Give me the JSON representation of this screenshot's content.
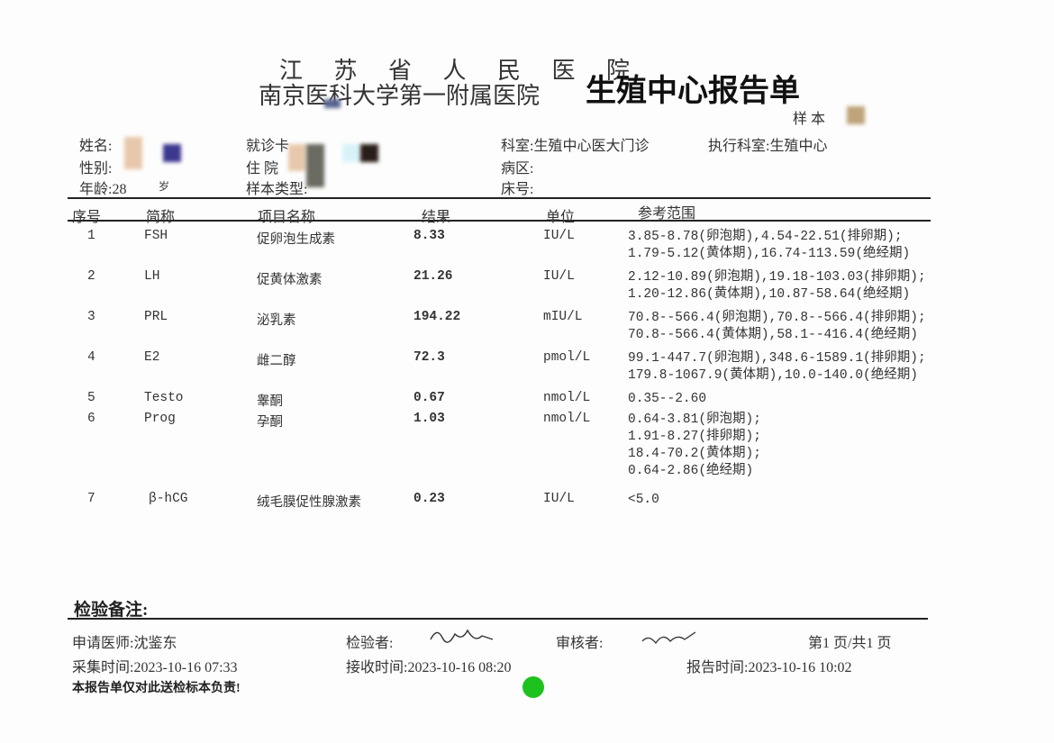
{
  "header": {
    "hospital_line1": "江 苏 省 人 民 医 院",
    "hospital_line2": "南京医科大学第一附属医院",
    "report_title": "生殖中心报告单",
    "sample_label": "样 本"
  },
  "patient": {
    "name_label": "姓名:",
    "gender_label": "性别:",
    "age_label": "年龄:28",
    "age_unit": "岁",
    "card_label": "就诊卡",
    "inpatient_label": "住 院",
    "sample_type_label": "样本类型:",
    "dept": "科室:生殖中心医大门诊",
    "exec_dept": "执行科室:生殖中心",
    "ward": "病区:",
    "bed": "床号:"
  },
  "table": {
    "headers": [
      "序号",
      "简称",
      "项目名称",
      "结果",
      "单位",
      "参考范围"
    ],
    "rows": [
      {
        "no": "1",
        "abbr": "FSH",
        "name": "促卵泡生成素",
        "result": "8.33",
        "unit": "IU/L",
        "ref": [
          "3.85-8.78(卵泡期),4.54-22.51(排卵期);",
          "1.79-5.12(黄体期),16.74-113.59(绝经期)"
        ]
      },
      {
        "no": "2",
        "abbr": "LH",
        "name": "促黄体激素",
        "result": "21.26",
        "unit": "IU/L",
        "ref": [
          "2.12-10.89(卵泡期),19.18-103.03(排卵期);",
          "1.20-12.86(黄体期),10.87-58.64(绝经期)"
        ]
      },
      {
        "no": "3",
        "abbr": "PRL",
        "name": "泌乳素",
        "result": "194.22",
        "unit": "mIU/L",
        "ref": [
          "70.8--566.4(卵泡期),70.8--566.4(排卵期);",
          "70.8--566.4(黄体期),58.1--416.4(绝经期)"
        ]
      },
      {
        "no": "4",
        "abbr": "E2",
        "name": "雌二醇",
        "result": "72.3",
        "unit": "pmol/L",
        "ref": [
          "99.1-447.7(卵泡期),348.6-1589.1(排卵期);",
          "179.8-1067.9(黄体期),10.0-140.0(绝经期)"
        ]
      },
      {
        "no": "5",
        "abbr": "Testo",
        "name": "睾酮",
        "result": "0.67",
        "unit": "nmol/L",
        "ref": [
          "0.35--2.60"
        ]
      },
      {
        "no": "6",
        "abbr": "Prog",
        "name": "孕酮",
        "result": "1.03",
        "unit": "nmol/L",
        "ref": [
          "0.64-3.81(卵泡期);",
          "1.91-8.27(排卵期);",
          "18.4-70.2(黄体期);",
          "0.64-2.86(绝经期)"
        ]
      },
      {
        "no": "7",
        "abbr": "β-hCG",
        "name": "绒毛膜促性腺激素",
        "result": "0.23",
        "unit": "IU/L",
        "ref": [
          "<5.0"
        ]
      }
    ]
  },
  "footer": {
    "remarks_label": "检验备注:",
    "requesting_doctor": "申请医师:沈鉴东",
    "tester_label": "检验者:",
    "reviewer_label": "审核者:",
    "page_info": "第1 页/共1 页",
    "collect_time": "采集时间:2023-10-16 07:33",
    "receive_time": "接收时间:2023-10-16 08:20",
    "report_time": "报告时间:2023-10-16 10:02",
    "disclaimer": "本报告单仅对此送检标本负责!"
  },
  "colors": {
    "status_dot": "#1ec21e"
  }
}
